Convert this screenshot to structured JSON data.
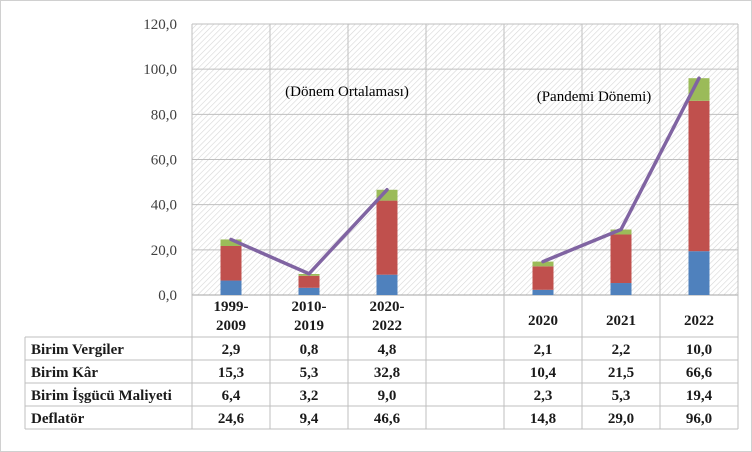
{
  "chart_data": {
    "type": "bar",
    "stacked": true,
    "ylim": [
      0,
      120
    ],
    "yticks": [
      "0,0",
      "20,0",
      "40,0",
      "60,0",
      "80,0",
      "100,0",
      "120,0"
    ],
    "categories": [
      [
        "1999-",
        "2009"
      ],
      [
        "2010-",
        "2019"
      ],
      [
        "2020-",
        "2022"
      ],
      [
        ""
      ],
      [
        "2020"
      ],
      [
        "2021"
      ],
      [
        "2022"
      ]
    ],
    "annotations": [
      "(Dönem Ortalaması)",
      "(Pandemi Dönemi)"
    ],
    "series": [
      {
        "name": "Birim İşgücü Maliyeti",
        "color": "#4f81bd",
        "kind": "bar",
        "labels": [
          "6,4",
          "3,2",
          "9,0",
          "",
          "2,3",
          "5,3",
          "19,4"
        ],
        "values": [
          6.4,
          3.2,
          9.0,
          null,
          2.3,
          5.3,
          19.4
        ]
      },
      {
        "name": "Birim Kâr",
        "color": "#c0504d",
        "kind": "bar",
        "labels": [
          "15,3",
          "5,3",
          "32,8",
          "",
          "10,4",
          "21,5",
          "66,6"
        ],
        "values": [
          15.3,
          5.3,
          32.8,
          null,
          10.4,
          21.5,
          66.6
        ]
      },
      {
        "name": "Birim Vergiler",
        "color": "#9bbb59",
        "kind": "bar",
        "labels": [
          "2,9",
          "0,8",
          "4,8",
          "",
          "2,1",
          "2,2",
          "10,0"
        ],
        "values": [
          2.9,
          0.8,
          4.8,
          null,
          2.1,
          2.2,
          10.0
        ]
      },
      {
        "name": "Deflatör",
        "color": "#8064a2",
        "kind": "line",
        "labels": [
          "24,6",
          "9,4",
          "46,6",
          "",
          "14,8",
          "29,0",
          "96,0"
        ],
        "values": [
          24.6,
          9.4,
          46.6,
          null,
          14.8,
          29.0,
          96.0
        ]
      }
    ],
    "table_rows": [
      "Birim Vergiler",
      "Birim Kâr",
      "Birim İşgücü Maliyeti",
      "Deflatör"
    ]
  }
}
